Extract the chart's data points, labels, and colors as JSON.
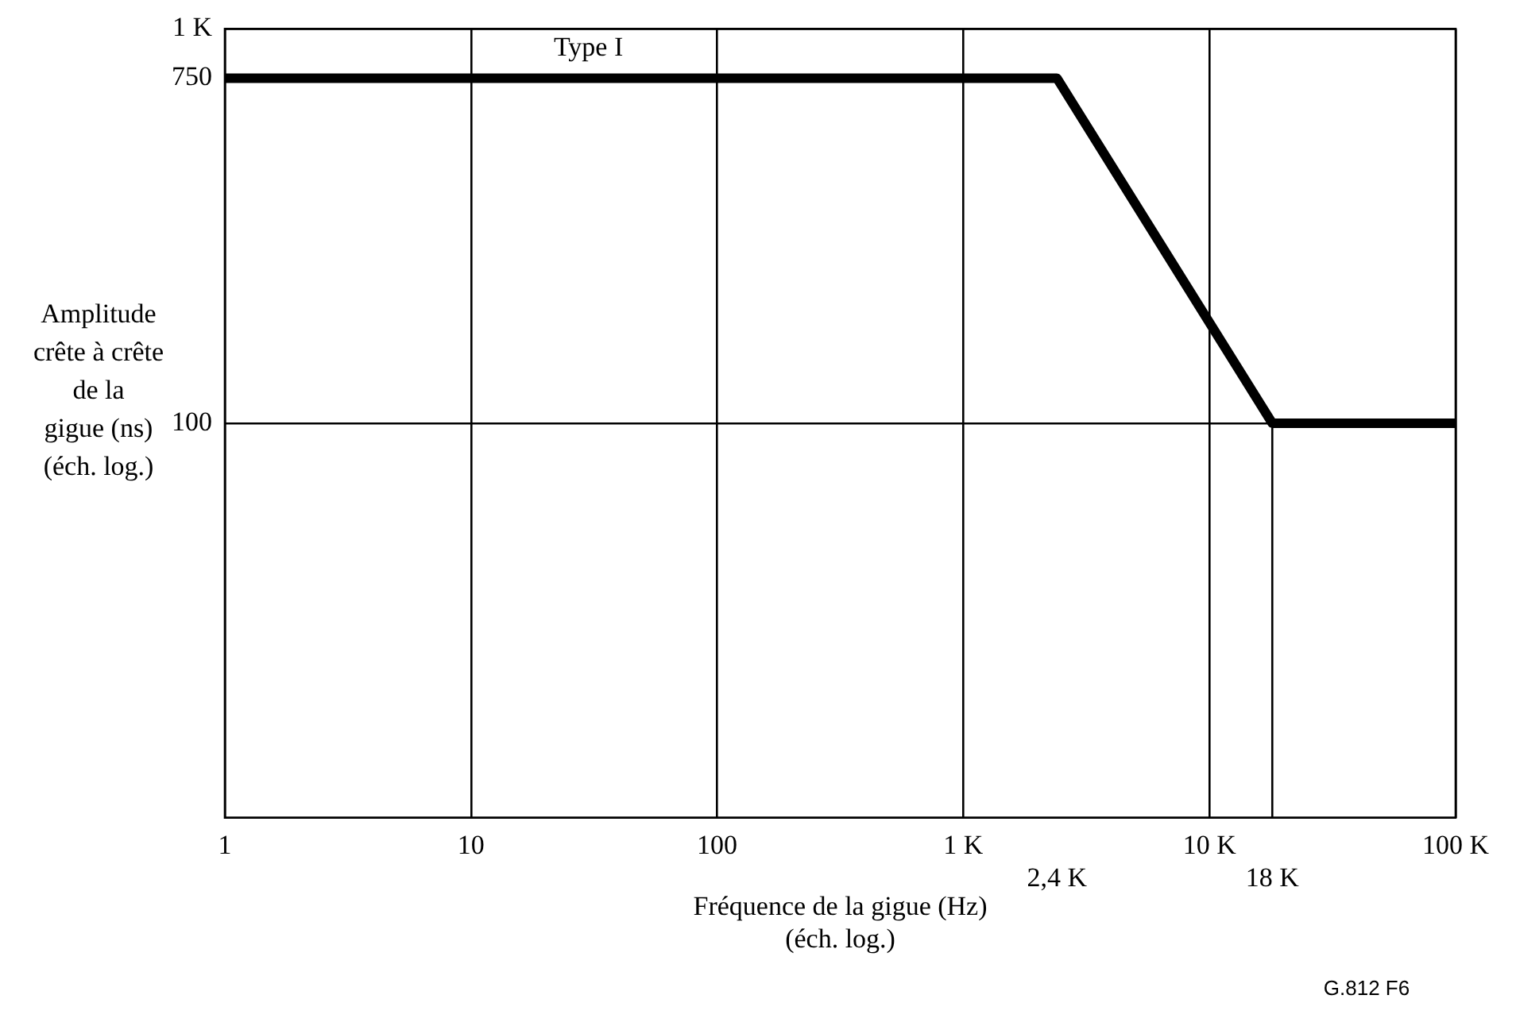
{
  "chart_data": {
    "type": "line",
    "xlabel": "Fréquence de la gigue (Hz)\n(éch. log.)",
    "ylabel": "Amplitude\ncrête à crête\nde la\ngigue (ns)\n(éch. log.)",
    "x": [
      1,
      2400,
      18000,
      100000
    ],
    "series": [
      {
        "color": "#000000",
        "values": [
          750,
          750,
          100,
          100
        ]
      },
      {
        "type": "line",
        "color": "#000000",
        "x": [
          18000,
          18000
        ],
        "values": [
          10,
          100
        ]
      }
    ],
    "log": "xy",
    "xlim": [
      1,
      100000
    ],
    "ylim": [
      10,
      1000
    ],
    "xticks": [
      1,
      10,
      100,
      {
        "value": 1000,
        "label": "1 K"
      },
      {
        "value": 10000,
        "label": "10 K"
      },
      {
        "value": 100000,
        "label": "100 K"
      }
    ],
    "yticks": [
      100,
      750,
      {
        "value": 1000,
        "label": "1 K"
      }
    ],
    "grid": true,
    "legend": false,
    "marker": "none",
    "line_style": "solid",
    "annotations": [
      {
        "text": "Type I",
        "x": 30,
        "y": 750
      },
      "2,4 K",
      {
        "text": "18 K",
        "x": 18000,
        "y": 10
      },
      "G.812 F6"
    ]
  }
}
